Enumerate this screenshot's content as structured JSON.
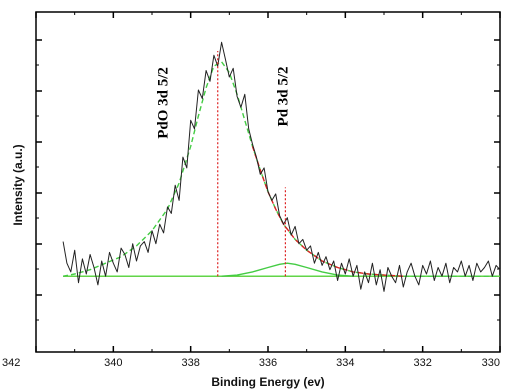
{
  "chart_data": {
    "type": "line",
    "title": "",
    "xlabel": "Binding Energy (ev)",
    "ylabel": "Intensity (a.u.)",
    "xlim": [
      342,
      330
    ],
    "x_reversed": true,
    "xticks": [
      342,
      340,
      338,
      336,
      334,
      332,
      330
    ],
    "ylim": [
      -0.35,
      1.22
    ],
    "grid": false,
    "legend": "none",
    "annotations": [
      {
        "text": "PdO 3d 5/2",
        "x": 338.6,
        "y": 0.8
      },
      {
        "text": "Pd 3d 5/2",
        "x": 335.5,
        "y": 0.83
      }
    ],
    "series": [
      {
        "role": "measured",
        "color": "#222222",
        "x": [
          341.3,
          341.2,
          341.1,
          341.0,
          340.9,
          340.8,
          340.7,
          340.6,
          340.5,
          340.4,
          340.3,
          340.2,
          340.1,
          340.0,
          339.9,
          339.8,
          339.7,
          339.6,
          339.5,
          339.4,
          339.3,
          339.2,
          339.1,
          339.0,
          338.9,
          338.8,
          338.7,
          338.6,
          338.5,
          338.4,
          338.3,
          338.2,
          338.1,
          338.0,
          337.9,
          337.8,
          337.7,
          337.6,
          337.5,
          337.4,
          337.3,
          337.2,
          337.1,
          337.0,
          336.9,
          336.8,
          336.7,
          336.6,
          336.5,
          336.4,
          336.3,
          336.2,
          336.1,
          336.0,
          335.9,
          335.8,
          335.7,
          335.6,
          335.5,
          335.4,
          335.3,
          335.2,
          335.1,
          335.0,
          334.9,
          334.8,
          334.7,
          334.6,
          334.5,
          334.4,
          334.3,
          334.2,
          334.1,
          334.0,
          333.9,
          333.8,
          333.7,
          333.6,
          333.5,
          333.4,
          333.3,
          333.2,
          333.1,
          333.0,
          332.9,
          332.8,
          332.7,
          332.6,
          332.5,
          332.4,
          332.3,
          332.2,
          332.1,
          332.0,
          331.9,
          331.8,
          331.7,
          331.6,
          331.5,
          331.4,
          331.3,
          331.2,
          331.1,
          331.0,
          330.9,
          330.8,
          330.7,
          330.6,
          330.5,
          330.4,
          330.3,
          330.2,
          330.1,
          330.0
        ],
        "y": [
          0.16,
          0.06,
          0.02,
          0.12,
          -0.03,
          0.08,
          0.01,
          0.1,
          0.04,
          -0.04,
          0.07,
          0.0,
          0.11,
          0.06,
          0.02,
          0.13,
          0.1,
          0.04,
          0.15,
          0.07,
          0.14,
          0.16,
          0.11,
          0.21,
          0.15,
          0.24,
          0.2,
          0.32,
          0.29,
          0.42,
          0.35,
          0.55,
          0.5,
          0.72,
          0.68,
          0.86,
          0.82,
          0.95,
          0.9,
          1.02,
          0.97,
          1.08,
          1.0,
          0.92,
          0.96,
          0.83,
          0.78,
          0.84,
          0.68,
          0.61,
          0.55,
          0.47,
          0.5,
          0.39,
          0.35,
          0.38,
          0.28,
          0.24,
          0.27,
          0.19,
          0.23,
          0.15,
          0.17,
          0.12,
          0.14,
          0.06,
          0.11,
          0.05,
          0.09,
          0.03,
          0.07,
          -0.02,
          0.06,
          0.01,
          0.08,
          0.0,
          0.05,
          -0.06,
          0.02,
          -0.03,
          0.06,
          -0.04,
          0.03,
          -0.07,
          0.04,
          0.0,
          -0.03,
          0.05,
          -0.05,
          0.02,
          0.06,
          0.0,
          -0.04,
          0.05,
          0.01,
          0.07,
          -0.02,
          0.04,
          0.0,
          0.06,
          -0.03,
          0.04,
          0.02,
          0.07,
          0.0,
          0.05,
          -0.02,
          0.06,
          0.02,
          0.04,
          0.07,
          0.0,
          0.05,
          0.03
        ]
      },
      {
        "role": "fit-envelope",
        "color": "#44cc44",
        "dashed": true,
        "x": [
          341.3,
          341.0,
          340.6,
          340.2,
          339.8,
          339.4,
          339.0,
          338.6,
          338.3,
          338.0,
          337.8,
          337.6,
          337.4,
          337.2,
          337.0,
          336.8,
          336.6,
          336.4,
          336.2,
          336.0,
          335.8,
          335.6,
          335.3,
          335.0,
          334.6,
          334.2,
          333.8,
          333.4,
          333.0,
          332.5,
          332.0,
          331.0,
          330.0
        ],
        "y": [
          0.0,
          0.01,
          0.03,
          0.06,
          0.09,
          0.14,
          0.21,
          0.31,
          0.43,
          0.6,
          0.74,
          0.87,
          0.97,
          0.99,
          0.94,
          0.84,
          0.72,
          0.6,
          0.49,
          0.39,
          0.31,
          0.24,
          0.17,
          0.12,
          0.07,
          0.04,
          0.02,
          0.01,
          0.005,
          0.0,
          0.0,
          0.0,
          0.0
        ]
      },
      {
        "role": "fit-red-tail",
        "color": "#dd2222",
        "dashed": true,
        "x": [
          336.4,
          336.2,
          336.0,
          335.8,
          335.6,
          335.3,
          335.0,
          334.6,
          334.2,
          333.8,
          333.4,
          333.0,
          332.5
        ],
        "y": [
          0.6,
          0.49,
          0.39,
          0.31,
          0.24,
          0.17,
          0.12,
          0.07,
          0.04,
          0.02,
          0.01,
          0.005,
          0.0
        ]
      },
      {
        "role": "pd-component",
        "color": "#44cc44",
        "x": [
          337.2,
          336.8,
          336.4,
          336.0,
          335.7,
          335.5,
          335.3,
          335.0,
          334.6,
          334.2,
          333.8
        ],
        "y": [
          0.0,
          0.005,
          0.02,
          0.04,
          0.055,
          0.06,
          0.055,
          0.04,
          0.02,
          0.005,
          0.0
        ]
      },
      {
        "role": "baseline",
        "color": "#cc6633",
        "x": [
          341.3,
          330.0
        ],
        "y": [
          0.0,
          0.0
        ]
      },
      {
        "role": "baseline-green",
        "color": "#55dd44",
        "x": [
          341.3,
          330.0
        ],
        "y": [
          0.0,
          0.0
        ]
      }
    ],
    "reference_lines": [
      {
        "x": 337.3,
        "y0": 0.0,
        "y1": 1.04,
        "color": "#dd2222"
      },
      {
        "x": 335.55,
        "y0": 0.0,
        "y1": 0.41,
        "color": "#dd2222"
      }
    ]
  }
}
